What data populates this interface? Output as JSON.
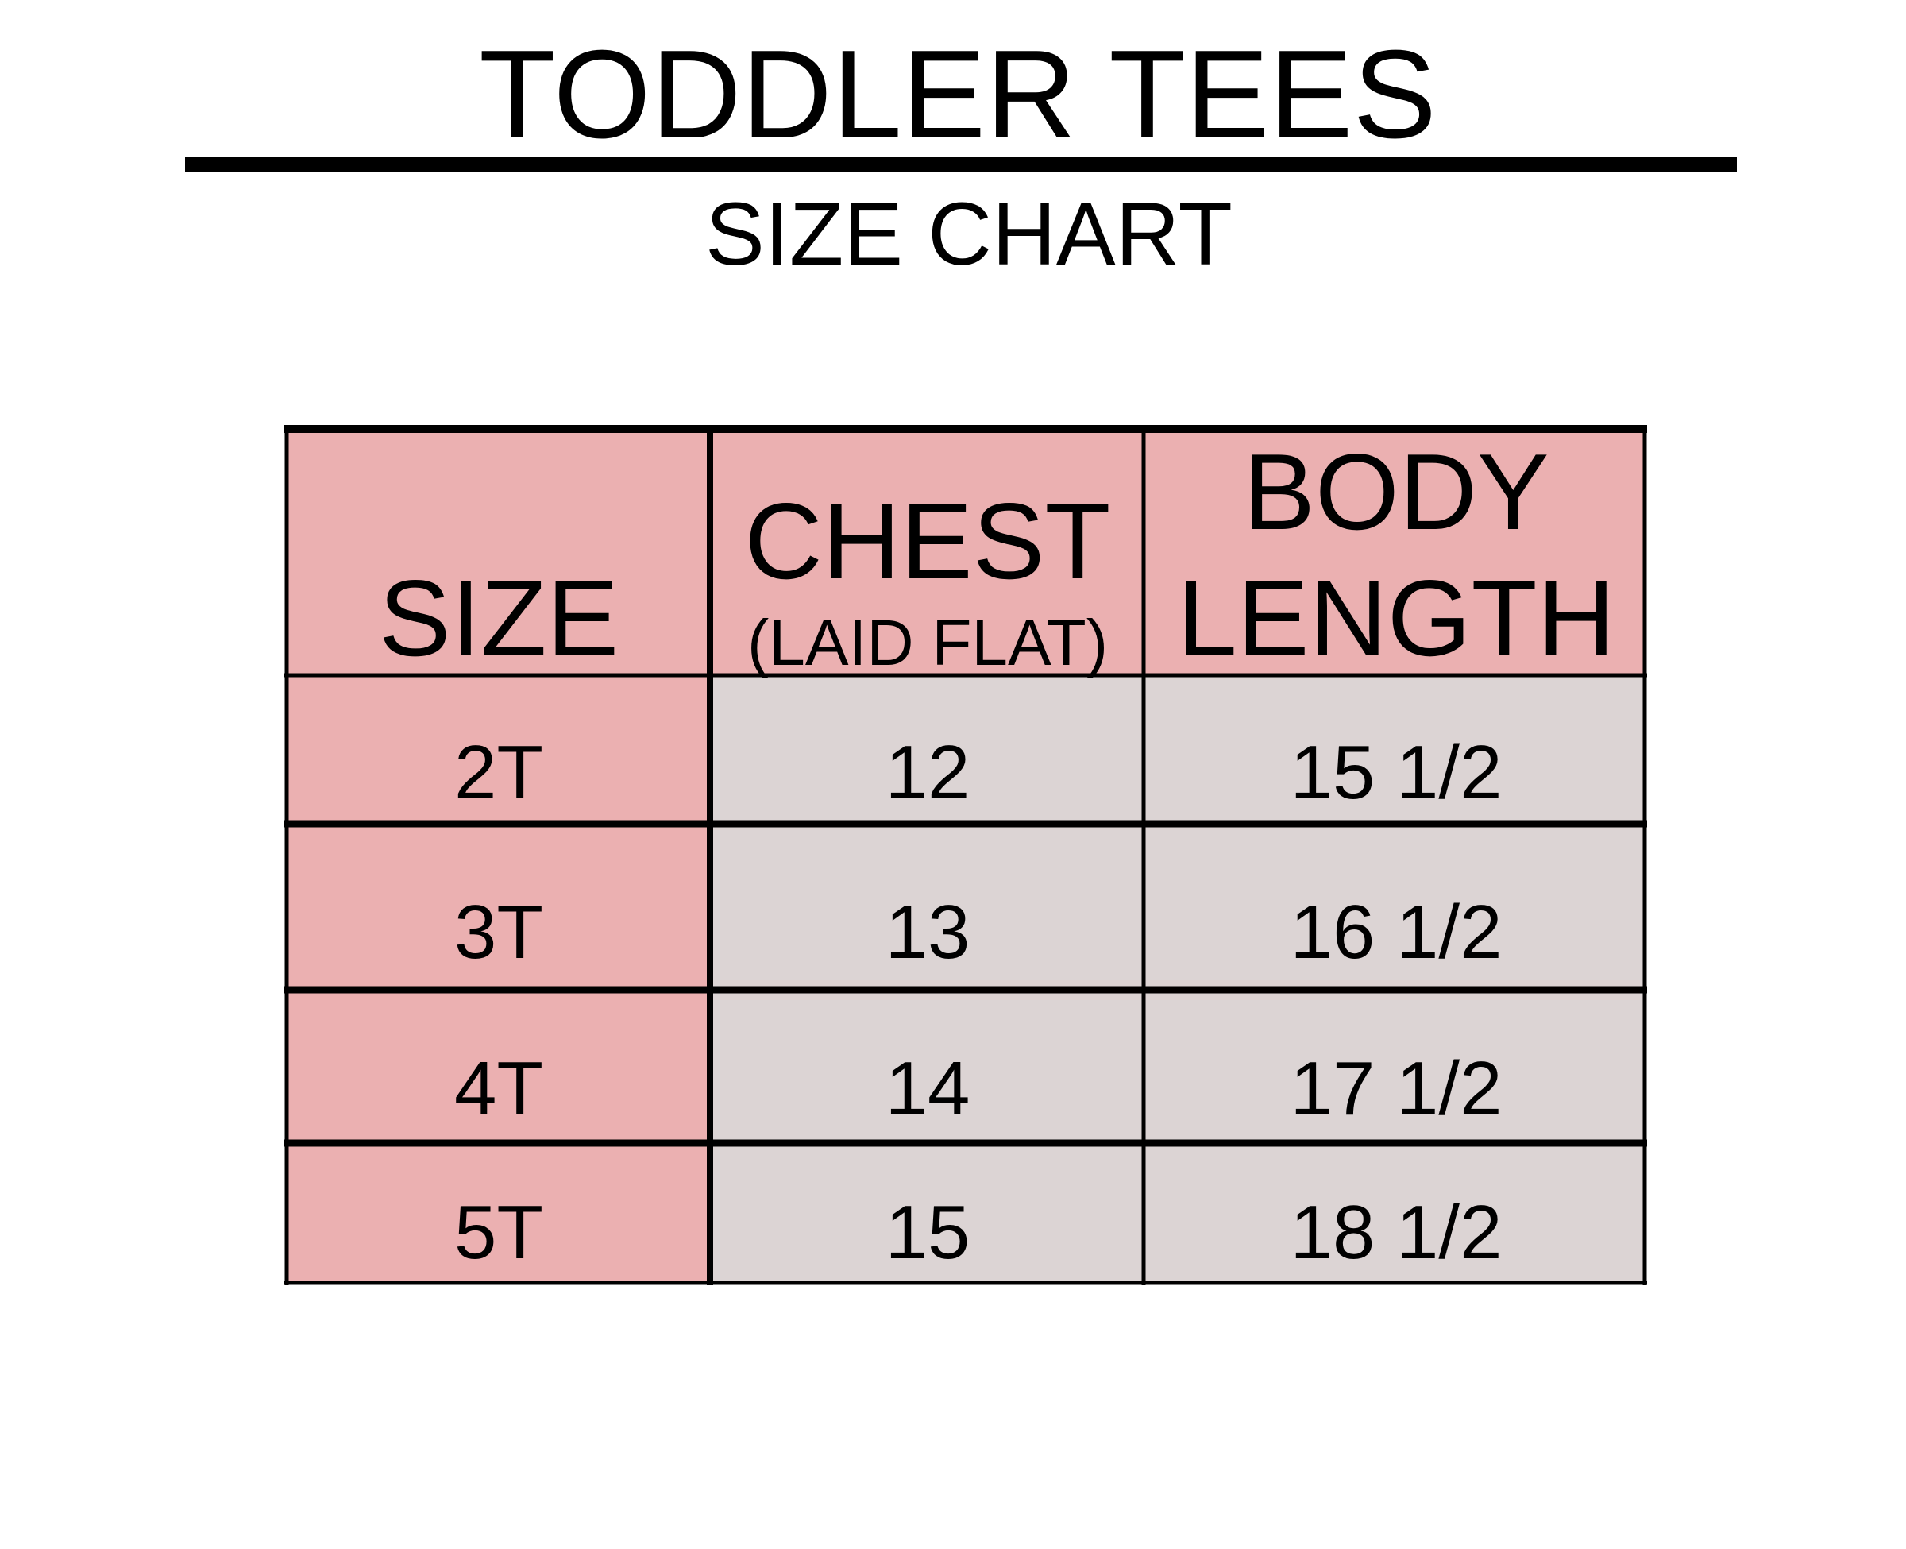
{
  "header": {
    "title": "TODDLER TEES",
    "subtitle": "SIZE CHART"
  },
  "table": {
    "columns": [
      {
        "lines": [
          "SIZE"
        ]
      },
      {
        "lines": [
          "CHEST"
        ],
        "note": "(LAID FLAT)"
      },
      {
        "lines": [
          "BODY",
          "LENGTH"
        ]
      }
    ],
    "rows": [
      [
        "2T",
        "12",
        "15 1/2"
      ],
      [
        "3T",
        "13",
        "16 1/2"
      ],
      [
        "4T",
        "14",
        "17 1/2"
      ],
      [
        "5T",
        "15",
        "18 1/2"
      ]
    ]
  }
}
